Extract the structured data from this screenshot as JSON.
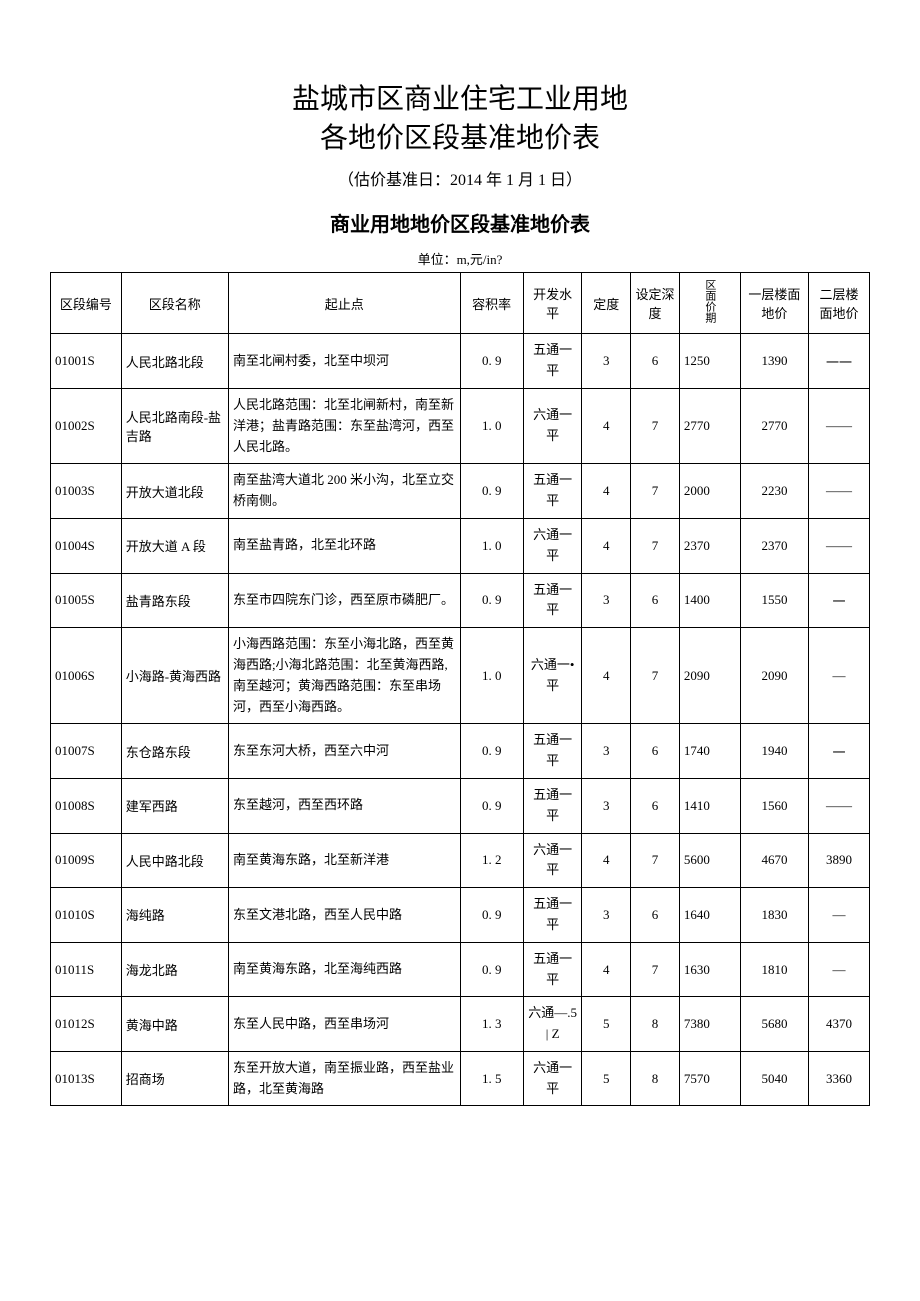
{
  "title_line1": "盐城市区商业住宅工业用地",
  "title_line2": "各地价区段基准地价表",
  "subtitle": "（估价基准日：2014 年 1 月 1 日）",
  "section_title": "商业用地地价区段基准地价表",
  "unit_text": "单位：m,元/in?",
  "columns": {
    "code": "区段编号",
    "name": "区段名称",
    "range": "起止点",
    "ratio": "容积率",
    "dev": "开发水平",
    "depth1": "定度",
    "depth2": "设定深度",
    "price1": "区面价期",
    "price2": "一层楼面地价",
    "price3": "二层楼面地价"
  },
  "rows": [
    {
      "code": "01001S",
      "name": "人民北路北段",
      "range": "南至北闸村委，北至中坝河",
      "ratio": "0. 9",
      "dev": "五通一平",
      "d1": "3",
      "d2": "6",
      "p1": "1250",
      "p2": "1390",
      "p3": "一一"
    },
    {
      "code": "01002S",
      "name": "人民北路南段-盐吉路",
      "range": "人民北路范围：北至北闸新村，南至新洋港；盐青路范围：东至盐湾河，西至人民北路。",
      "ratio": "1. 0",
      "dev": "六通一平",
      "d1": "4",
      "d2": "7",
      "p1": "2770",
      "p2": "2770",
      "p3": "——"
    },
    {
      "code": "01003S",
      "name": "开放大道北段",
      "range": "南至盐湾大道北 200 米小沟，北至立交桥南侧。",
      "ratio": "0. 9",
      "dev": "五通一平",
      "d1": "4",
      "d2": "7",
      "p1": "2000",
      "p2": "2230",
      "p3": "——"
    },
    {
      "code": "01004S",
      "name": "开放大道 A 段",
      "range": "南至盐青路，北至北环路",
      "ratio": "1. 0",
      "dev": "六通一平",
      "d1": "4",
      "d2": "7",
      "p1": "2370",
      "p2": "2370",
      "p3": "——"
    },
    {
      "code": "01005S",
      "name": "盐青路东段",
      "range": "东至市四院东门诊，西至原市磷肥厂。",
      "ratio": "0. 9",
      "dev": "五通一平",
      "d1": "3",
      "d2": "6",
      "p1": "1400",
      "p2": "1550",
      "p3": "一"
    },
    {
      "code": "01006S",
      "name": "小海路-黄海西路",
      "range": "小海西路范围：东至小海北路，西至黄海西路;小海北路范围：北至黄海西路,南至越河；黄海西路范围：东至串场河，西至小海西路。",
      "ratio": "1. 0",
      "dev": "六通一•平",
      "d1": "4",
      "d2": "7",
      "p1": "2090",
      "p2": "2090",
      "p3": "—"
    },
    {
      "code": "01007S",
      "name": "东仓路东段",
      "range": "东至东河大桥，西至六中河",
      "ratio": "0. 9",
      "dev": "五通一平",
      "d1": "3",
      "d2": "6",
      "p1": "1740",
      "p2": "1940",
      "p3": "一"
    },
    {
      "code": "01008S",
      "name": "建军西路",
      "range": "东至越河，西至西环路",
      "ratio": "0. 9",
      "dev": "五通一平",
      "d1": "3",
      "d2": "6",
      "p1": "1410",
      "p2": "1560",
      "p3": "——"
    },
    {
      "code": "01009S",
      "name": "人民中路北段",
      "range": "南至黄海东路，北至新洋港",
      "ratio": "1. 2",
      "dev": "六通一平",
      "d1": "4",
      "d2": "7",
      "p1": "5600",
      "p2": "4670",
      "p3": "3890"
    },
    {
      "code": "01010S",
      "name": "海纯路",
      "range": "东至文港北路，西至人民中路",
      "ratio": "0. 9",
      "dev": "五通一平",
      "d1": "3",
      "d2": "6",
      "p1": "1640",
      "p2": "1830",
      "p3": "—"
    },
    {
      "code": "01011S",
      "name": "海龙北路",
      "range": "南至黄海东路，北至海纯西路",
      "ratio": "0. 9",
      "dev": "五通一平",
      "d1": "4",
      "d2": "7",
      "p1": "1630",
      "p2": "1810",
      "p3": "—"
    },
    {
      "code": "01012S",
      "name": "黄海中路",
      "range": "东至人民中路，西至串场河",
      "ratio": "1. 3",
      "dev": "六通—.5 | Z",
      "d1": "5",
      "d2": "8",
      "p1": "7380",
      "p2": "5680",
      "p3": "4370"
    },
    {
      "code": "01013S",
      "name": "招商场",
      "range": "东至开放大道，南至振业路，西至盐业路，北至黄海路",
      "ratio": "1. 5",
      "dev": "六通一平",
      "d1": "5",
      "d2": "8",
      "p1": "7570",
      "p2": "5040",
      "p3": "3360"
    }
  ]
}
